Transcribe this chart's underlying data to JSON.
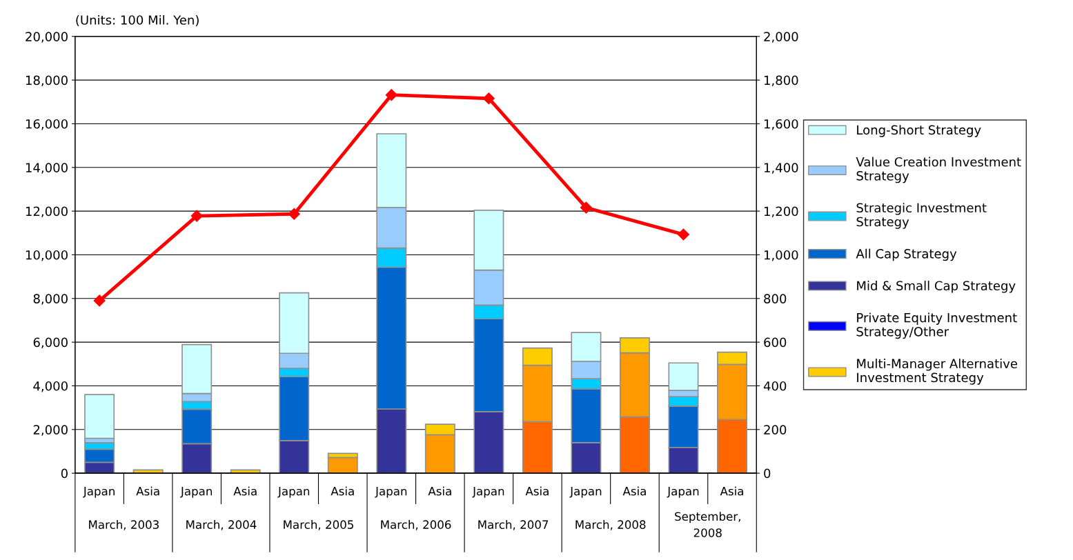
{
  "chart_data": {
    "type": "bar",
    "stacked": true,
    "categories": [
      "Japan",
      "Asia",
      "Japan",
      "Asia",
      "Japan",
      "Asia",
      "Japan",
      "Asia",
      "Japan",
      "Asia",
      "Japan",
      "Asia",
      "Japan",
      "Asia"
    ],
    "series": [
      {
        "color": "#ff6600",
        "values": [
          0,
          0,
          0,
          0,
          0,
          0,
          0,
          0,
          0,
          2360,
          0,
          2580,
          0,
          2460
        ]
      },
      {
        "color": "#ff9900",
        "values": [
          0,
          0,
          0,
          0,
          0,
          720,
          0,
          1760,
          0,
          2580,
          0,
          2930,
          0,
          2520
        ]
      },
      {
        "name": "Multi-Manager Alternative Investment Strategy",
        "color": "#ffcc00",
        "values": [
          0,
          150,
          0,
          150,
          0,
          190,
          0,
          480,
          0,
          790,
          0,
          690,
          0,
          560
        ]
      },
      {
        "name": "Private Equity Investment Strategy/Other",
        "color": "#0000ff",
        "values": [
          0,
          0,
          0,
          0,
          0,
          0,
          0,
          0,
          0,
          0,
          0,
          0,
          0,
          0
        ]
      },
      {
        "name": "Mid & Small Cap Strategy",
        "color": "#333399",
        "values": [
          500,
          0,
          1350,
          0,
          1490,
          0,
          2940,
          0,
          2820,
          0,
          1400,
          0,
          1180,
          0
        ]
      },
      {
        "name": "All Cap Strategy",
        "color": "#0066cc",
        "values": [
          600,
          0,
          1580,
          0,
          2930,
          0,
          6490,
          0,
          4250,
          0,
          2460,
          0,
          1890,
          0
        ]
      },
      {
        "name": "Strategic Investment Strategy",
        "color": "#00ccff",
        "values": [
          300,
          0,
          350,
          0,
          380,
          0,
          880,
          0,
          630,
          0,
          470,
          0,
          440,
          0
        ]
      },
      {
        "name": "Value Creation Investment Strategy",
        "color": "#99ccff",
        "values": [
          200,
          0,
          370,
          0,
          690,
          0,
          1860,
          0,
          1600,
          0,
          790,
          0,
          280,
          0
        ]
      },
      {
        "name": "Long-Short Strategy",
        "color": "#ccffff",
        "values": [
          2000,
          0,
          2240,
          0,
          2770,
          0,
          3370,
          0,
          2740,
          0,
          1320,
          0,
          1260,
          0
        ]
      },
      {
        "type": "line",
        "axis": "y2",
        "color": "#ff0000",
        "values": [
          790,
          null,
          1178,
          null,
          1187,
          null,
          1732,
          null,
          1716,
          null,
          1216,
          null,
          1093,
          null
        ]
      }
    ],
    "ylim": [
      0,
      20000
    ],
    "yticks": [
      0,
      {
        "value": 2000,
        "label": "2,000"
      },
      {
        "value": 4000,
        "label": "4,000"
      },
      {
        "value": 6000,
        "label": "6,000"
      },
      {
        "value": 8000,
        "label": "8,000"
      },
      {
        "value": 10000,
        "label": "10,000"
      },
      {
        "value": 12000,
        "label": "12,000"
      },
      {
        "value": 14000,
        "label": "14,000"
      },
      {
        "value": 16000,
        "label": "16,000"
      },
      {
        "value": 18000,
        "label": "18,000"
      },
      {
        "value": 20000,
        "label": "20,000"
      }
    ],
    "y2lim": [
      0,
      2000
    ],
    "y2ticks": [
      0,
      200,
      400,
      600,
      800,
      {
        "value": 1000,
        "label": "1,000"
      },
      {
        "value": 1200,
        "label": "1,200"
      },
      {
        "value": 1400,
        "label": "1,400"
      },
      {
        "value": 1600,
        "label": "1,600"
      },
      {
        "value": 1800,
        "label": "1,800"
      },
      {
        "value": 2000,
        "label": "2,000"
      }
    ],
    "grid": "y",
    "legend": "right",
    "marker": "diamond",
    "line_style": "solid",
    "annotations": [
      "(Units: 100 Mil. Yen)",
      "March, 2003",
      "March, 2004",
      "March, 2005",
      "March, 2006",
      "March, 2007",
      "March, 2008",
      "September, 2008"
    ]
  }
}
